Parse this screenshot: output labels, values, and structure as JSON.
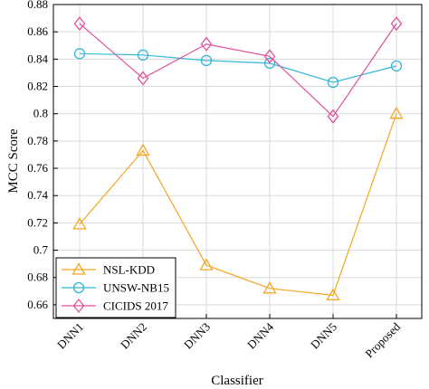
{
  "chart_data": {
    "type": "line",
    "xlabel": "Classifier",
    "ylabel": "MCC Score",
    "categories": [
      "DNN1",
      "DNN2",
      "DNN3",
      "DNN4",
      "DNN5",
      "Proposed"
    ],
    "ylim": [
      0.65,
      0.88
    ],
    "yticks": [
      0.66,
      0.68,
      0.7,
      0.72,
      0.74,
      0.76,
      0.78,
      0.8,
      0.82,
      0.84,
      0.86,
      0.88
    ],
    "ytick_labels": [
      "0.66",
      "0.68",
      "0.7",
      "0.72",
      "0.74",
      "0.76",
      "0.78",
      "0.8",
      "0.82",
      "0.84",
      "0.86",
      "0.88"
    ],
    "grid": true,
    "legend_position": "bottom-left",
    "series": [
      {
        "name": "NSL-KDD",
        "marker": "triangle",
        "color": "#f5a623",
        "values": [
          0.719,
          0.773,
          0.689,
          0.672,
          0.667,
          0.8
        ]
      },
      {
        "name": "UNSW-NB15",
        "marker": "circle",
        "color": "#33b6d8",
        "values": [
          0.844,
          0.843,
          0.839,
          0.837,
          0.823,
          0.835
        ]
      },
      {
        "name": "CICIDS 2017",
        "marker": "diamond",
        "color": "#e0529c",
        "values": [
          0.866,
          0.826,
          0.851,
          0.842,
          0.798,
          0.866
        ]
      }
    ]
  }
}
